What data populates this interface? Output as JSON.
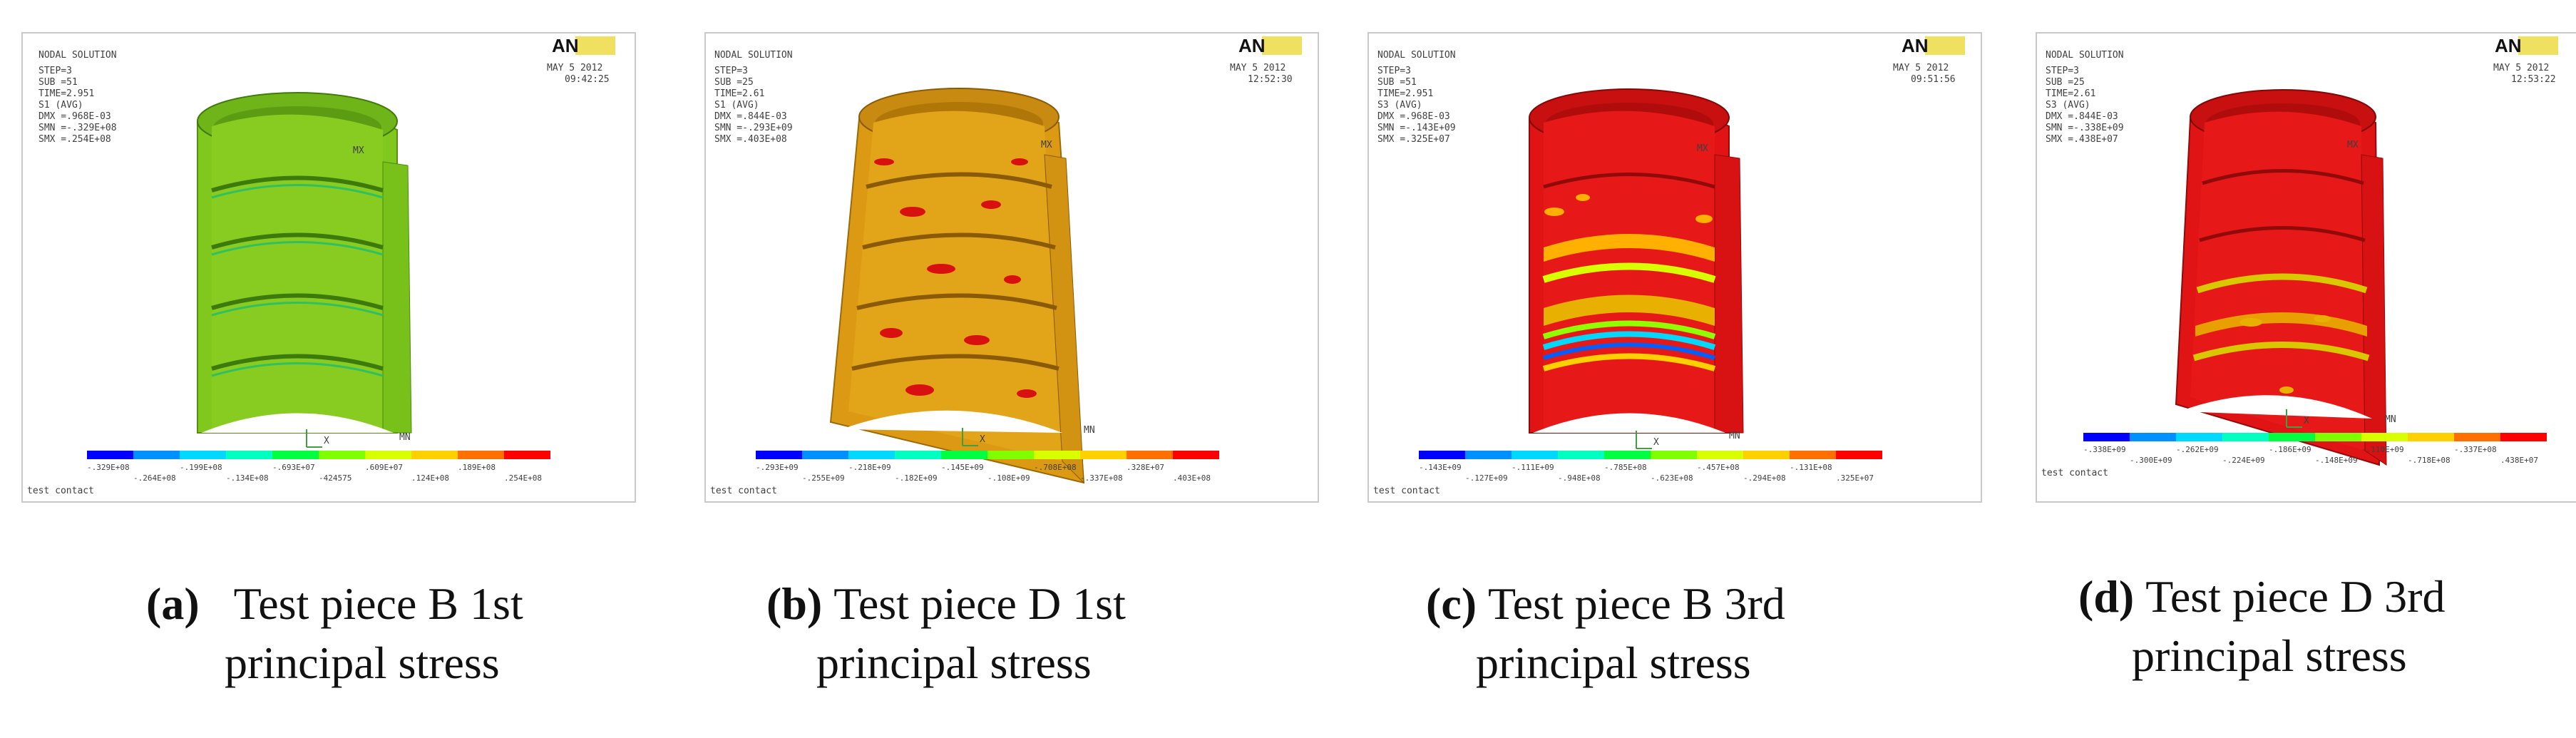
{
  "panels": [
    {
      "id": "a",
      "header": {
        "title": "NODAL SOLUTION",
        "step": "STEP=3",
        "sub": "SUB =51",
        "time": "TIME=2.951",
        "quantity": "S1       (AVG)",
        "dmx": "DMX =.968E-03",
        "smn": "SMN =-.329E+08",
        "smx": "SMX =.254E+08",
        "date": "MAY  5 2012",
        "clock": "09:42:25"
      },
      "logo": "AN",
      "colorbar_labels": [
        "-.329E+08",
        "-.264E+08",
        "-.199E+08",
        "-.134E+08",
        "-.693E+07",
        "-424575",
        ".609E+07",
        ".124E+08",
        ".189E+08",
        ".254E+08"
      ],
      "footer": "test contact",
      "mx_label": "MX",
      "mn_label": "MN",
      "axis_label": "X",
      "caption": {
        "letter": "(a)",
        "line1": "Test piece B 1st",
        "line2": "principal stress"
      }
    },
    {
      "id": "b",
      "header": {
        "title": "NODAL SOLUTION",
        "step": "STEP=3",
        "sub": "SUB =25",
        "time": "TIME=2.61",
        "quantity": "S1       (AVG)",
        "dmx": "DMX =.844E-03",
        "smn": "SMN =-.293E+09",
        "smx": "SMX =.403E+08",
        "date": "MAY  5 2012",
        "clock": "12:52:30"
      },
      "logo": "AN",
      "colorbar_labels": [
        "-.293E+09",
        "-.255E+09",
        "-.218E+09",
        "-.182E+09",
        "-.145E+09",
        "-.108E+09",
        "-.708E+08",
        "-.337E+08",
        ".328E+07",
        ".403E+08"
      ],
      "footer": "test contact",
      "mx_label": "MX",
      "mn_label": "MN",
      "axis_label": "X",
      "caption": {
        "letter": "(b)",
        "line1": "Test piece D 1st",
        "line2": "principal stress"
      }
    },
    {
      "id": "c",
      "header": {
        "title": "NODAL SOLUTION",
        "step": "STEP=3",
        "sub": "SUB =51",
        "time": "TIME=2.951",
        "quantity": "S3       (AVG)",
        "dmx": "DMX =.968E-03",
        "smn": "SMN =-.143E+09",
        "smx": "SMX =.325E+07",
        "date": "MAY  5 2012",
        "clock": "09:51:56"
      },
      "logo": "AN",
      "colorbar_labels": [
        "-.143E+09",
        "-.127E+09",
        "-.111E+09",
        "-.948E+08",
        "-.785E+08",
        "-.623E+08",
        "-.457E+08",
        "-.294E+08",
        "-.131E+08",
        ".325E+07"
      ],
      "footer": "test contact",
      "mx_label": "MX",
      "mn_label": "MN",
      "axis_label": "X",
      "caption": {
        "letter": "(c)",
        "line1": "Test piece B 3rd",
        "line2": "principal stress"
      }
    },
    {
      "id": "d",
      "header": {
        "title": "NODAL SOLUTION",
        "step": "STEP=3",
        "sub": "SUB =25",
        "time": "TIME=2.61",
        "quantity": "S3       (AVG)",
        "dmx": "DMX =.844E-03",
        "smn": "SMN =-.338E+09",
        "smx": "SMX =.438E+07",
        "date": "MAY  5 2012",
        "clock": "12:53:22"
      },
      "logo": "AN",
      "colorbar_labels": [
        "-.338E+09",
        "-.300E+09",
        "-.262E+09",
        "-.224E+09",
        "-.186E+09",
        "-.148E+09",
        "-.110E+09",
        "-.718E+08",
        "-.337E+08",
        ".438E+07"
      ],
      "footer": "test contact",
      "mx_label": "MX",
      "mn_label": "MN",
      "axis_label": "X",
      "caption": {
        "letter": "(d)",
        "line1": "Test piece D 3rd",
        "line2": "principal stress"
      }
    }
  ],
  "colors": {
    "colorbar": [
      "#0000ff",
      "#0090ff",
      "#00d8ff",
      "#00ffc0",
      "#00ff40",
      "#80ff00",
      "#d8ff00",
      "#ffd000",
      "#ff7000",
      "#ff0000"
    ],
    "panel_a_base": "#80c81e",
    "panel_b_base": "#dc9a14",
    "panel_cd_base": "#e01414"
  }
}
